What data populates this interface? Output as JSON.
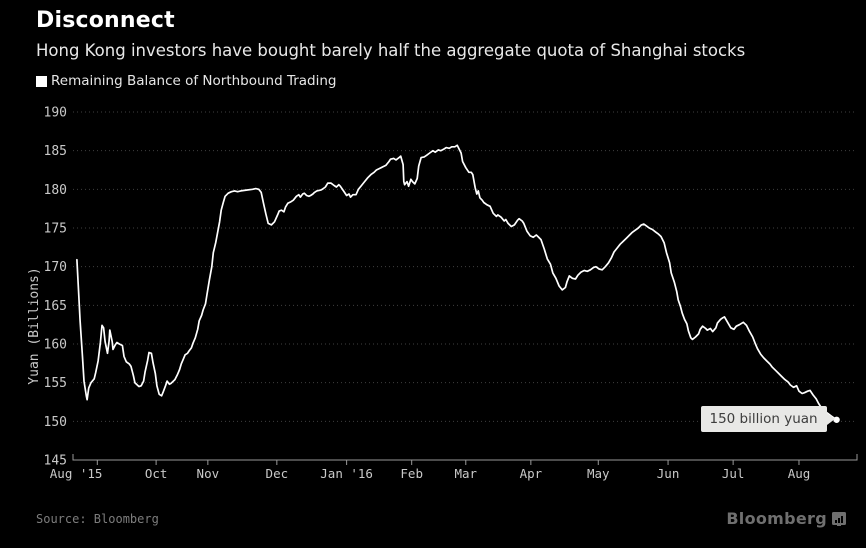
{
  "header": {
    "title": "Disconnect",
    "subtitle": "Hong Kong investors have bought barely half the aggregate quota of Shanghai stocks"
  },
  "legend": {
    "series_label": "Remaining Balance of Northbound Trading"
  },
  "tooltip": {
    "text": "150 billion yuan"
  },
  "footer": {
    "source": "Source: Bloomberg",
    "logo": "Bloomberg"
  },
  "colors": {
    "background": "#000000",
    "title_text": "#ffffff",
    "subtitle_text": "#e8e8e8",
    "legend_text": "#e6e6e6",
    "axis_label": "#c9c9c9",
    "grid_line": "#3f3f3f",
    "axis_line": "#999999",
    "series_line": "#ffffff",
    "tooltip_bg": "#e8e8e6",
    "tooltip_text": "#3d3d3d",
    "source_text": "#7d7d7d",
    "logo_text": "#6f6f6f"
  },
  "chart_data": {
    "type": "line",
    "title": "Remaining Balance of Northbound Trading",
    "xlabel": "",
    "ylabel": "Yuan (Billions)",
    "ylim": [
      145,
      190
    ],
    "yticks": [
      145,
      150,
      155,
      160,
      165,
      170,
      175,
      180,
      185,
      190
    ],
    "grid": "horizontal-dotted",
    "legend_position": "top-left",
    "xtick_labels": [
      {
        "label": "Aug '15",
        "f": 0.004
      },
      {
        "label": "Oct",
        "f": 0.106
      },
      {
        "label": "Nov",
        "f": 0.172
      },
      {
        "label": "Dec",
        "f": 0.26
      },
      {
        "label": "Jan '16",
        "f": 0.349
      },
      {
        "label": "Feb",
        "f": 0.432
      },
      {
        "label": "Mar",
        "f": 0.501
      },
      {
        "label": "Apr",
        "f": 0.584
      },
      {
        "label": "May",
        "f": 0.67
      },
      {
        "label": "Jun",
        "f": 0.759
      },
      {
        "label": "Jul",
        "f": 0.842
      },
      {
        "label": "Aug",
        "f": 0.926
      }
    ],
    "xtick_marks_f": [
      0.031,
      0.106,
      0.172,
      0.26,
      0.349,
      0.432,
      0.501,
      0.584,
      0.67,
      0.759,
      0.842,
      0.926
    ],
    "annotation": {
      "label": "150 billion yuan",
      "value": 150.2
    },
    "points": [
      [
        0.005,
        170.9
      ],
      [
        0.007,
        167.0
      ],
      [
        0.009,
        163.0
      ],
      [
        0.012,
        158.5
      ],
      [
        0.014,
        155.2
      ],
      [
        0.017,
        153.3
      ],
      [
        0.018,
        152.8
      ],
      [
        0.02,
        154.3
      ],
      [
        0.023,
        155.0
      ],
      [
        0.027,
        155.5
      ],
      [
        0.029,
        156.3
      ],
      [
        0.032,
        157.8
      ],
      [
        0.035,
        160.2
      ],
      [
        0.037,
        162.4
      ],
      [
        0.039,
        162.1
      ],
      [
        0.041,
        160.3
      ],
      [
        0.044,
        158.8
      ],
      [
        0.046,
        160.4
      ],
      [
        0.047,
        161.8
      ],
      [
        0.05,
        160.3
      ],
      [
        0.051,
        159.3
      ],
      [
        0.054,
        159.9
      ],
      [
        0.056,
        160.2
      ],
      [
        0.059,
        160.0
      ],
      [
        0.063,
        159.8
      ],
      [
        0.065,
        158.4
      ],
      [
        0.068,
        157.7
      ],
      [
        0.072,
        157.4
      ],
      [
        0.074,
        157.1
      ],
      [
        0.077,
        155.9
      ],
      [
        0.079,
        155.0
      ],
      [
        0.082,
        154.7
      ],
      [
        0.084,
        154.5
      ],
      [
        0.087,
        154.6
      ],
      [
        0.09,
        155.2
      ],
      [
        0.092,
        156.4
      ],
      [
        0.095,
        157.8
      ],
      [
        0.097,
        158.9
      ],
      [
        0.1,
        158.8
      ],
      [
        0.102,
        157.6
      ],
      [
        0.105,
        156.2
      ],
      [
        0.107,
        154.6
      ],
      [
        0.11,
        153.5
      ],
      [
        0.113,
        153.3
      ],
      [
        0.115,
        153.8
      ],
      [
        0.118,
        154.6
      ],
      [
        0.12,
        155.2
      ],
      [
        0.123,
        154.8
      ],
      [
        0.125,
        154.9
      ],
      [
        0.13,
        155.4
      ],
      [
        0.133,
        156.0
      ],
      [
        0.136,
        156.7
      ],
      [
        0.138,
        157.4
      ],
      [
        0.141,
        158.1
      ],
      [
        0.143,
        158.6
      ],
      [
        0.146,
        158.8
      ],
      [
        0.148,
        159.1
      ],
      [
        0.151,
        159.5
      ],
      [
        0.153,
        160.1
      ],
      [
        0.156,
        160.8
      ],
      [
        0.159,
        161.9
      ],
      [
        0.161,
        163.0
      ],
      [
        0.164,
        163.7
      ],
      [
        0.166,
        164.4
      ],
      [
        0.169,
        165.2
      ],
      [
        0.171,
        166.5
      ],
      [
        0.174,
        168.3
      ],
      [
        0.177,
        170.0
      ],
      [
        0.179,
        171.8
      ],
      [
        0.182,
        173.1
      ],
      [
        0.184,
        174.2
      ],
      [
        0.187,
        175.8
      ],
      [
        0.189,
        177.3
      ],
      [
        0.192,
        178.4
      ],
      [
        0.194,
        179.1
      ],
      [
        0.198,
        179.5
      ],
      [
        0.202,
        179.7
      ],
      [
        0.206,
        179.8
      ],
      [
        0.21,
        179.7
      ],
      [
        0.214,
        179.8
      ],
      [
        0.221,
        179.9
      ],
      [
        0.229,
        180.0
      ],
      [
        0.233,
        180.1
      ],
      [
        0.237,
        180.0
      ],
      [
        0.24,
        179.6
      ],
      [
        0.243,
        178.2
      ],
      [
        0.246,
        176.8
      ],
      [
        0.249,
        175.6
      ],
      [
        0.253,
        175.4
      ],
      [
        0.257,
        175.8
      ],
      [
        0.261,
        176.7
      ],
      [
        0.263,
        177.2
      ],
      [
        0.266,
        177.3
      ],
      [
        0.269,
        177.1
      ],
      [
        0.271,
        177.7
      ],
      [
        0.274,
        178.2
      ],
      [
        0.278,
        178.4
      ],
      [
        0.281,
        178.6
      ],
      [
        0.285,
        179.1
      ],
      [
        0.288,
        179.3
      ],
      [
        0.29,
        179.0
      ],
      [
        0.293,
        179.4
      ],
      [
        0.295,
        179.5
      ],
      [
        0.298,
        179.2
      ],
      [
        0.301,
        179.1
      ],
      [
        0.303,
        179.2
      ],
      [
        0.306,
        179.4
      ],
      [
        0.308,
        179.6
      ],
      [
        0.311,
        179.8
      ],
      [
        0.316,
        179.9
      ],
      [
        0.318,
        180.0
      ],
      [
        0.322,
        180.3
      ],
      [
        0.325,
        180.8
      ],
      [
        0.329,
        180.8
      ],
      [
        0.333,
        180.5
      ],
      [
        0.336,
        180.3
      ],
      [
        0.339,
        180.6
      ],
      [
        0.341,
        180.4
      ],
      [
        0.345,
        179.8
      ],
      [
        0.349,
        179.2
      ],
      [
        0.352,
        179.4
      ],
      [
        0.354,
        179.0
      ],
      [
        0.357,
        179.3
      ],
      [
        0.361,
        179.3
      ],
      [
        0.364,
        180.0
      ],
      [
        0.368,
        180.5
      ],
      [
        0.372,
        181.0
      ],
      [
        0.376,
        181.5
      ],
      [
        0.38,
        181.9
      ],
      [
        0.384,
        182.2
      ],
      [
        0.387,
        182.5
      ],
      [
        0.391,
        182.7
      ],
      [
        0.395,
        182.9
      ],
      [
        0.399,
        183.1
      ],
      [
        0.403,
        183.6
      ],
      [
        0.405,
        183.9
      ],
      [
        0.409,
        184.0
      ],
      [
        0.412,
        183.8
      ],
      [
        0.416,
        184.1
      ],
      [
        0.418,
        184.3
      ],
      [
        0.421,
        183.2
      ],
      [
        0.422,
        181.0
      ],
      [
        0.423,
        180.6
      ],
      [
        0.426,
        181.0
      ],
      [
        0.428,
        180.4
      ],
      [
        0.431,
        181.3
      ],
      [
        0.433,
        181.0
      ],
      [
        0.436,
        180.7
      ],
      [
        0.439,
        181.4
      ],
      [
        0.441,
        183.0
      ],
      [
        0.444,
        184.1
      ],
      [
        0.448,
        184.2
      ],
      [
        0.451,
        184.4
      ],
      [
        0.455,
        184.7
      ],
      [
        0.459,
        185.0
      ],
      [
        0.462,
        184.8
      ],
      [
        0.466,
        185.1
      ],
      [
        0.469,
        185.0
      ],
      [
        0.473,
        185.2
      ],
      [
        0.476,
        185.4
      ],
      [
        0.48,
        185.3
      ],
      [
        0.483,
        185.5
      ],
      [
        0.487,
        185.5
      ],
      [
        0.49,
        185.7
      ],
      [
        0.492,
        185.3
      ],
      [
        0.495,
        184.7
      ],
      [
        0.497,
        183.6
      ],
      [
        0.501,
        182.8
      ],
      [
        0.505,
        182.2
      ],
      [
        0.508,
        182.2
      ],
      [
        0.51,
        181.9
      ],
      [
        0.513,
        180.2
      ],
      [
        0.515,
        179.4
      ],
      [
        0.517,
        179.8
      ],
      [
        0.519,
        178.9
      ],
      [
        0.522,
        178.6
      ],
      [
        0.524,
        178.3
      ],
      [
        0.528,
        178.0
      ],
      [
        0.532,
        177.8
      ],
      [
        0.536,
        176.9
      ],
      [
        0.54,
        176.5
      ],
      [
        0.542,
        176.7
      ],
      [
        0.546,
        176.4
      ],
      [
        0.55,
        175.9
      ],
      [
        0.552,
        176.1
      ],
      [
        0.555,
        175.6
      ],
      [
        0.559,
        175.2
      ],
      [
        0.563,
        175.4
      ],
      [
        0.567,
        176.0
      ],
      [
        0.569,
        176.2
      ],
      [
        0.573,
        175.9
      ],
      [
        0.575,
        175.6
      ],
      [
        0.579,
        174.6
      ],
      [
        0.583,
        174.0
      ],
      [
        0.587,
        173.8
      ],
      [
        0.591,
        174.1
      ],
      [
        0.593,
        173.9
      ],
      [
        0.597,
        173.5
      ],
      [
        0.601,
        172.3
      ],
      [
        0.605,
        171.0
      ],
      [
        0.609,
        170.3
      ],
      [
        0.612,
        169.2
      ],
      [
        0.616,
        168.5
      ],
      [
        0.62,
        167.5
      ],
      [
        0.624,
        167.0
      ],
      [
        0.628,
        167.3
      ],
      [
        0.63,
        168.0
      ],
      [
        0.633,
        168.8
      ],
      [
        0.637,
        168.5
      ],
      [
        0.641,
        168.4
      ],
      [
        0.644,
        168.9
      ],
      [
        0.648,
        169.3
      ],
      [
        0.652,
        169.5
      ],
      [
        0.656,
        169.4
      ],
      [
        0.66,
        169.6
      ],
      [
        0.664,
        169.9
      ],
      [
        0.667,
        170.0
      ],
      [
        0.671,
        169.7
      ],
      [
        0.675,
        169.6
      ],
      [
        0.679,
        170.0
      ],
      [
        0.683,
        170.5
      ],
      [
        0.687,
        171.2
      ],
      [
        0.69,
        171.9
      ],
      [
        0.694,
        172.4
      ],
      [
        0.698,
        172.9
      ],
      [
        0.702,
        173.3
      ],
      [
        0.706,
        173.7
      ],
      [
        0.71,
        174.1
      ],
      [
        0.713,
        174.4
      ],
      [
        0.717,
        174.7
      ],
      [
        0.721,
        175.0
      ],
      [
        0.725,
        175.4
      ],
      [
        0.728,
        175.5
      ],
      [
        0.731,
        175.3
      ],
      [
        0.735,
        175.0
      ],
      [
        0.739,
        174.8
      ],
      [
        0.743,
        174.5
      ],
      [
        0.747,
        174.2
      ],
      [
        0.75,
        173.9
      ],
      [
        0.754,
        173.1
      ],
      [
        0.757,
        171.8
      ],
      [
        0.761,
        170.5
      ],
      [
        0.763,
        169.2
      ],
      [
        0.767,
        168.0
      ],
      [
        0.77,
        166.8
      ],
      [
        0.772,
        165.7
      ],
      [
        0.775,
        164.8
      ],
      [
        0.777,
        164.0
      ],
      [
        0.78,
        163.2
      ],
      [
        0.783,
        162.6
      ],
      [
        0.785,
        161.7
      ],
      [
        0.788,
        160.8
      ],
      [
        0.79,
        160.6
      ],
      [
        0.794,
        160.9
      ],
      [
        0.798,
        161.3
      ],
      [
        0.8,
        161.9
      ],
      [
        0.803,
        162.3
      ],
      [
        0.807,
        162.0
      ],
      [
        0.809,
        161.8
      ],
      [
        0.813,
        162.0
      ],
      [
        0.816,
        161.6
      ],
      [
        0.82,
        162.1
      ],
      [
        0.822,
        162.7
      ],
      [
        0.826,
        163.2
      ],
      [
        0.829,
        163.4
      ],
      [
        0.831,
        163.5
      ],
      [
        0.835,
        162.8
      ],
      [
        0.839,
        162.1
      ],
      [
        0.843,
        161.9
      ],
      [
        0.846,
        162.3
      ],
      [
        0.85,
        162.5
      ],
      [
        0.855,
        162.8
      ],
      [
        0.859,
        162.4
      ],
      [
        0.863,
        161.6
      ],
      [
        0.867,
        160.9
      ],
      [
        0.87,
        160.1
      ],
      [
        0.873,
        159.4
      ],
      [
        0.877,
        158.7
      ],
      [
        0.881,
        158.2
      ],
      [
        0.885,
        157.8
      ],
      [
        0.889,
        157.4
      ],
      [
        0.892,
        157.0
      ],
      [
        0.896,
        156.6
      ],
      [
        0.9,
        156.2
      ],
      [
        0.904,
        155.8
      ],
      [
        0.908,
        155.4
      ],
      [
        0.912,
        155.1
      ],
      [
        0.915,
        154.7
      ],
      [
        0.919,
        154.4
      ],
      [
        0.923,
        154.6
      ],
      [
        0.926,
        153.9
      ],
      [
        0.93,
        153.6
      ],
      [
        0.933,
        153.7
      ],
      [
        0.937,
        153.9
      ],
      [
        0.94,
        154.0
      ],
      [
        0.944,
        153.4
      ],
      [
        0.948,
        152.9
      ],
      [
        0.951,
        152.3
      ],
      [
        0.955,
        151.7
      ],
      [
        0.959,
        151.3
      ],
      [
        0.963,
        151.0
      ],
      [
        0.967,
        150.7
      ],
      [
        0.971,
        150.4
      ],
      [
        0.974,
        150.2
      ]
    ]
  }
}
